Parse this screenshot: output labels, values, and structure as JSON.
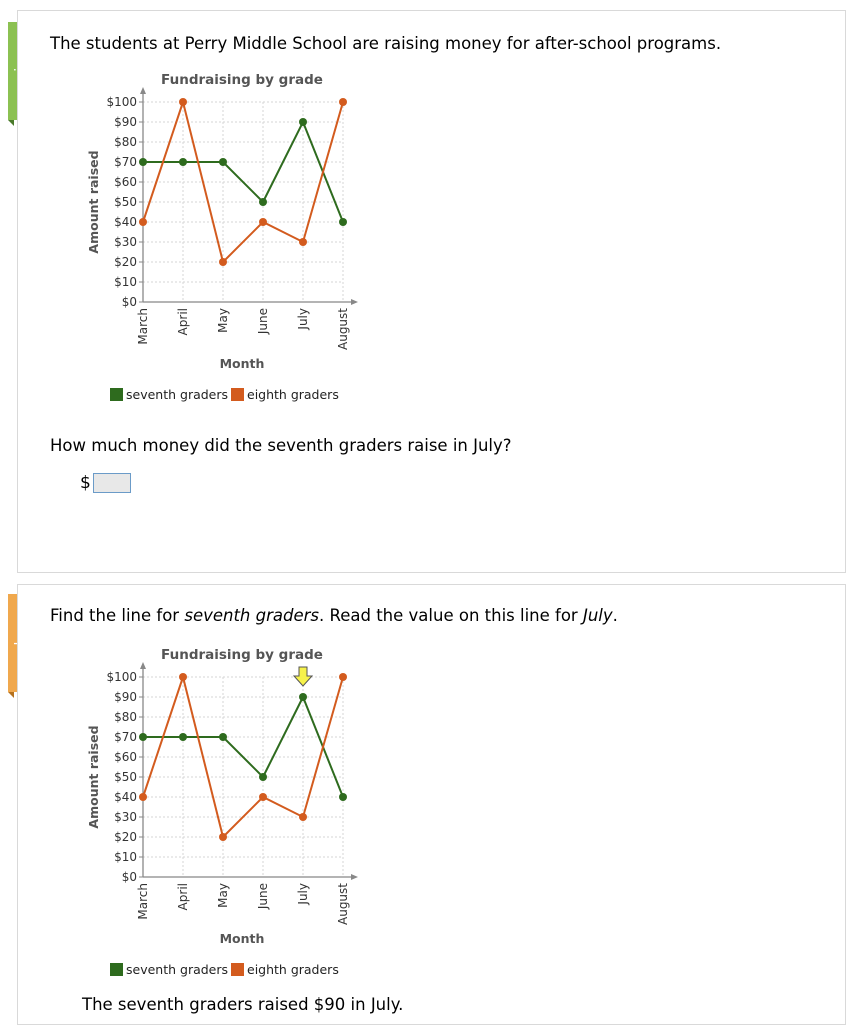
{
  "review": {
    "tab_label": "review",
    "intro": "The students at Perry Middle School are raising money for after-school programs.",
    "question": "How much money did the seventh graders raise in July?",
    "answer_prefix": "$",
    "answer_value": ""
  },
  "solve": {
    "tab_label": "solve",
    "instruction_parts": [
      "Find the line for ",
      "seventh graders",
      ". Read the value on this line for ",
      "July",
      "."
    ],
    "conclusion": "The seventh graders raised $90 in July.",
    "highlight_marker": "arrow-down-icon"
  },
  "chart_data": {
    "type": "line",
    "title": "Fundraising by grade",
    "xlabel": "Month",
    "ylabel": "Amount raised",
    "categories": [
      "March",
      "April",
      "May",
      "June",
      "July",
      "August"
    ],
    "yticks": [
      "$0",
      "$10",
      "$20",
      "$30",
      "$40",
      "$50",
      "$60",
      "$70",
      "$80",
      "$90",
      "$100"
    ],
    "ylim": [
      0,
      100
    ],
    "grid": true,
    "legend_placement": "bottom",
    "series": [
      {
        "name": "seventh graders",
        "values": [
          70,
          70,
          70,
          50,
          90,
          40
        ],
        "color": "#2e6b1e"
      },
      {
        "name": "eighth graders",
        "values": [
          40,
          100,
          20,
          40,
          30,
          100
        ],
        "color": "#d35b1e"
      }
    ]
  }
}
